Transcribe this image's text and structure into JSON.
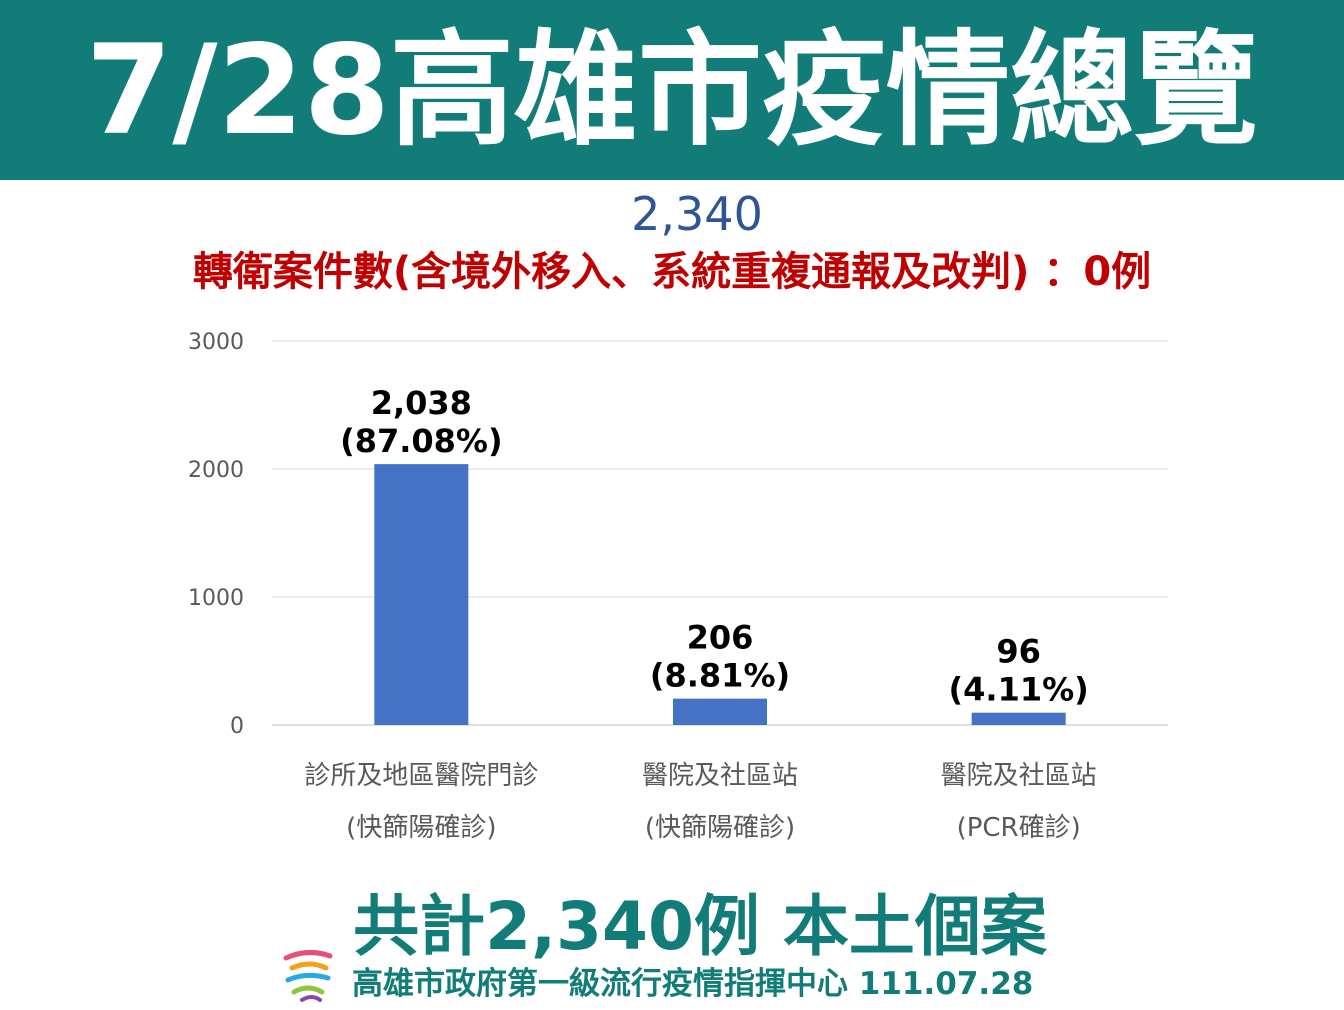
{
  "header": {
    "title": "7/28高雄市疫情總覽"
  },
  "total_top": "2,340",
  "note": "轉衛案件數(含境外移入、系統重複通報及改判) ：0例",
  "chart_data": {
    "type": "bar",
    "categories": [
      [
        "診所及地區醫院門診",
        "(快篩陽確診)"
      ],
      [
        "醫院及社區站",
        "(快篩陽確診)"
      ],
      [
        "醫院及社區站",
        "(PCR確診)"
      ]
    ],
    "values": [
      2038,
      206,
      96
    ],
    "data_labels": [
      [
        "2,038",
        "(87.08%)"
      ],
      [
        "206",
        "(8.81%)"
      ],
      [
        "96",
        "(4.11%)"
      ]
    ],
    "yticks": [
      "0",
      "1000",
      "2000",
      "3000"
    ],
    "ylim": [
      0,
      3000
    ],
    "grid": true,
    "bar_color": "#4472c4"
  },
  "summary": "共計2,340例 本土個案",
  "footer": "高雄市政府第一級流行疫情指揮中心 111.07.28",
  "colors": {
    "banner": "#127d78",
    "note": "#c00000",
    "total": "#2f5597",
    "summary": "#127d78"
  },
  "logo_icon": "kaohsiung-city-logo"
}
